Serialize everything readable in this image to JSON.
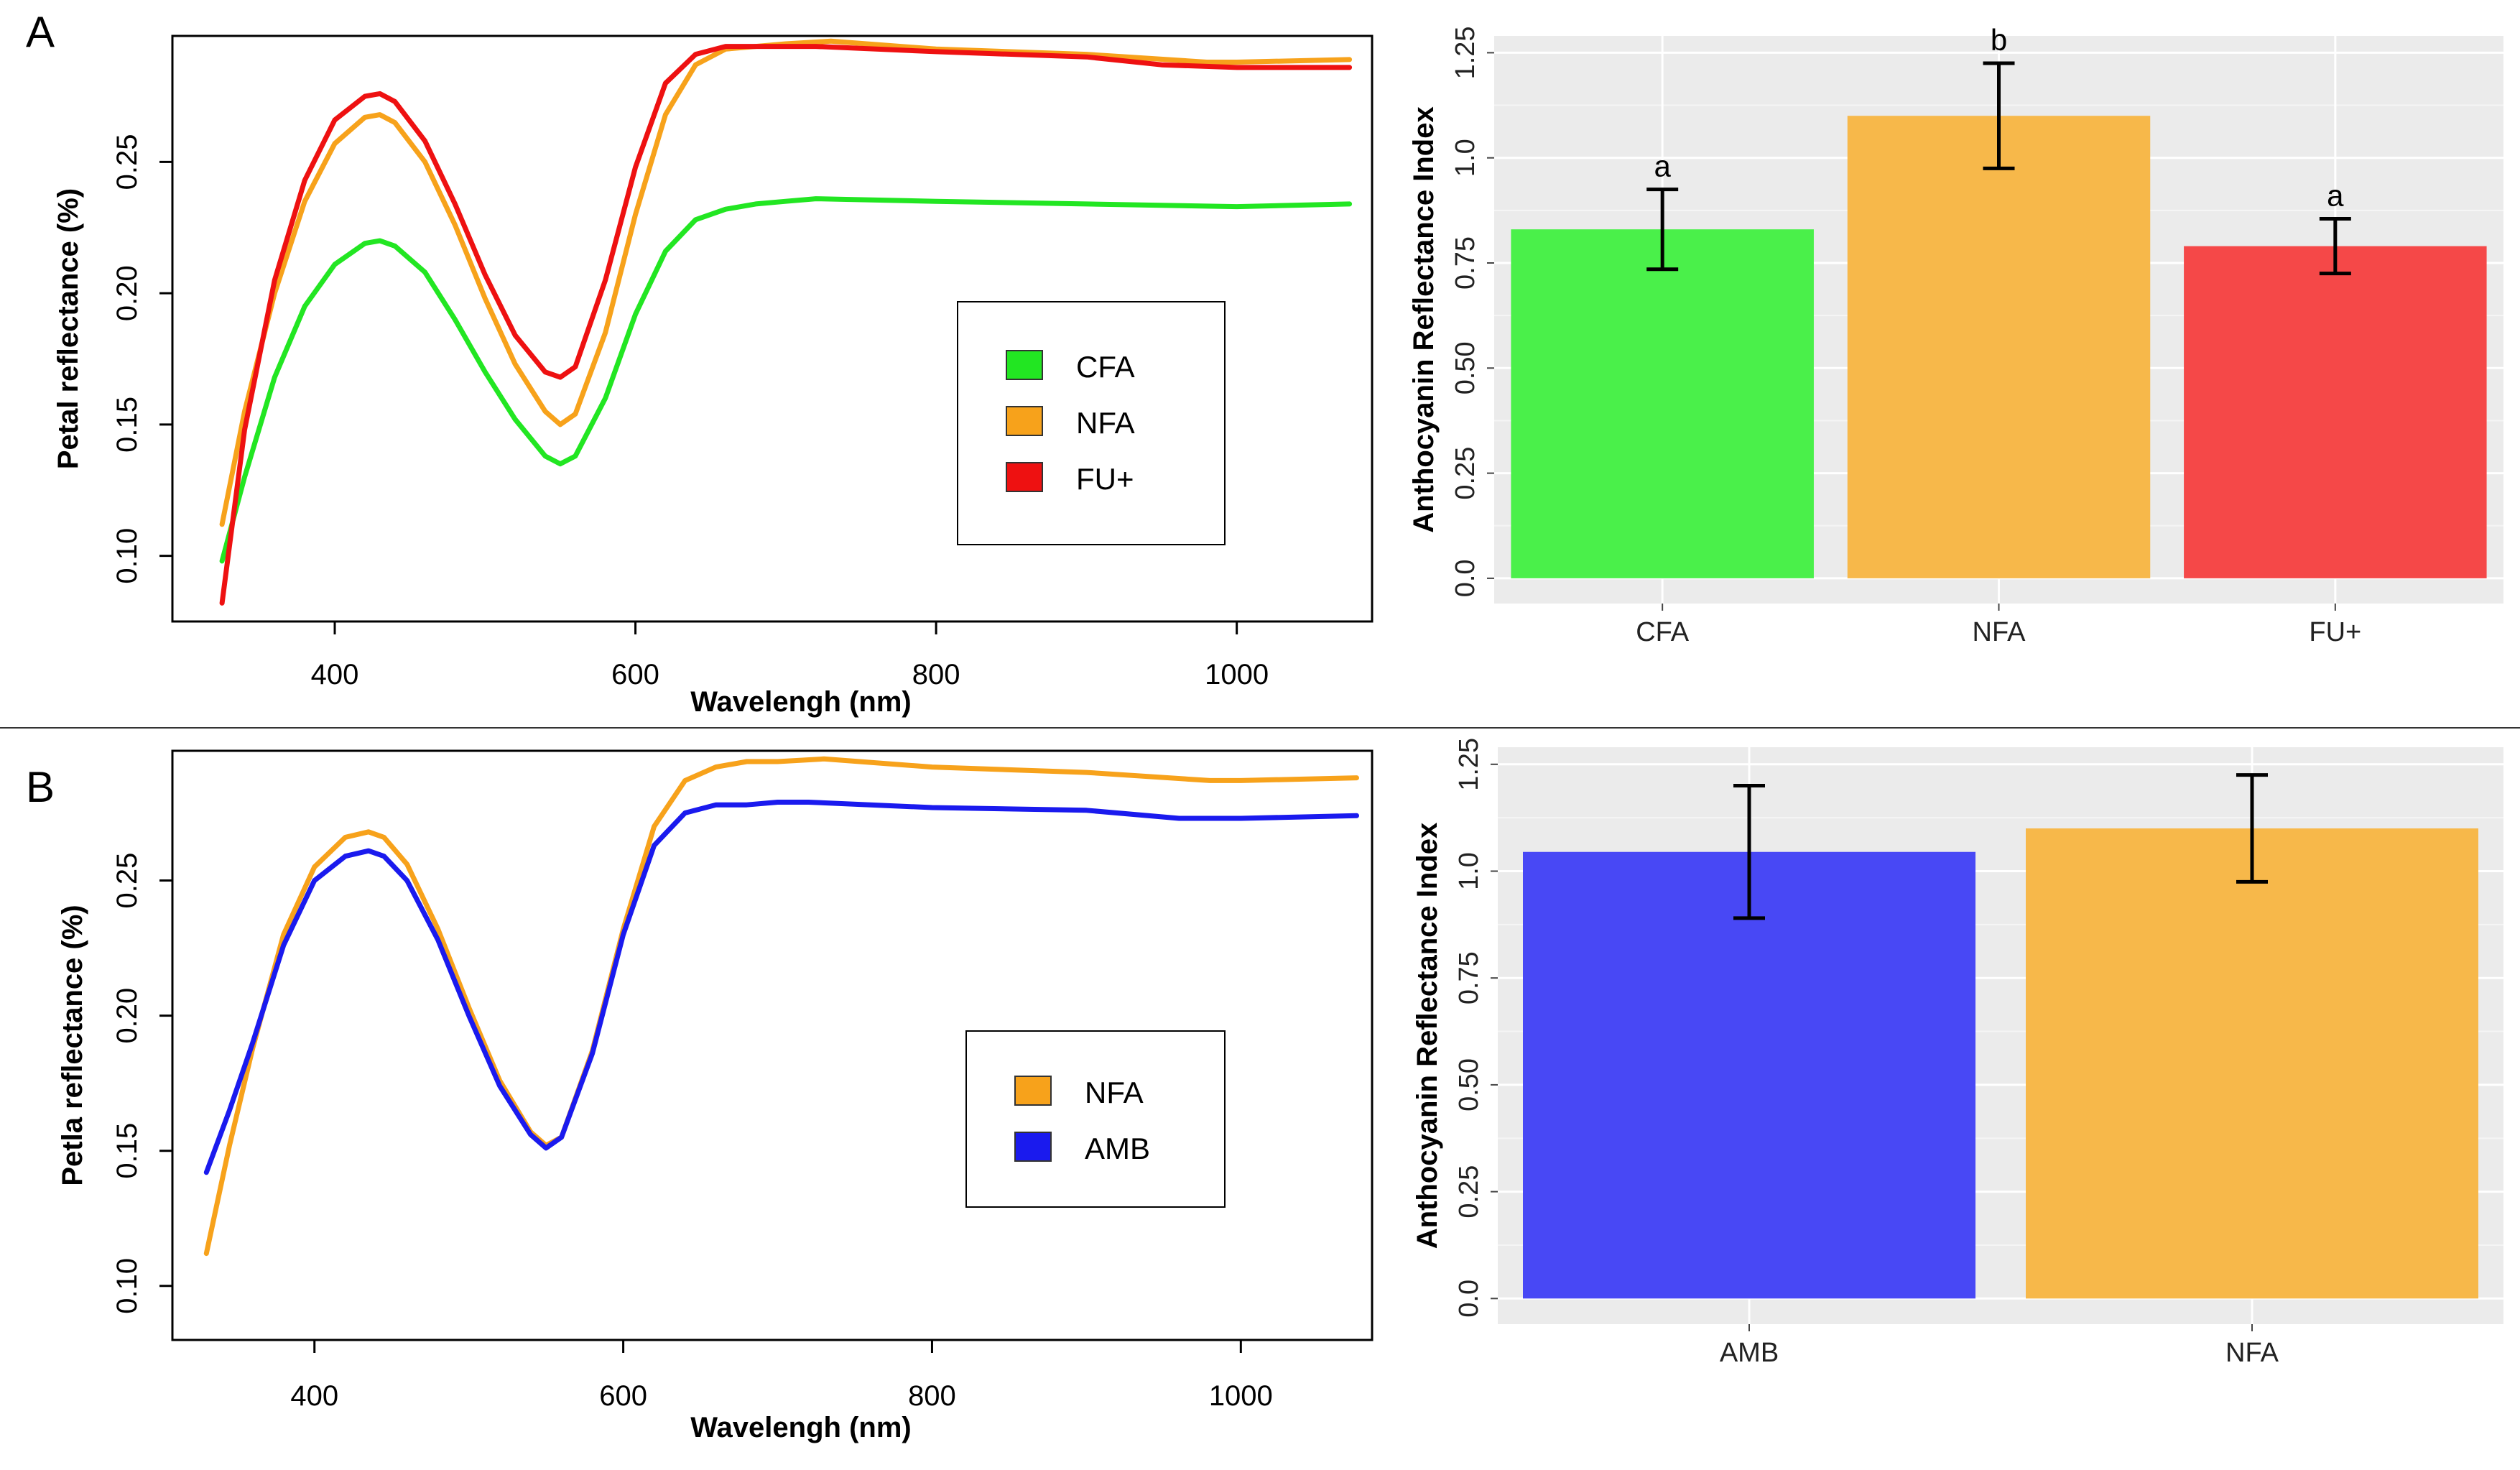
{
  "panels": {
    "A": {
      "letter": "A"
    },
    "B": {
      "letter": "B"
    }
  },
  "colors": {
    "CFA": "#22e622",
    "NFA": "#f7a21b",
    "FU+": "#ee1111",
    "AMB": "#1a1aee",
    "bar_CFA": "#4af04a",
    "bar_NFA": "#f7b84a",
    "bar_FU+": "#f54848",
    "bar_AMB": "#4848f5",
    "gg_panel": "#ebebeb"
  },
  "chart_data": [
    {
      "id": "A-left",
      "type": "line",
      "title": "",
      "xlabel": "Wavelengh (nm)",
      "ylabel": "Petal reflectance (%)",
      "xlim": [
        292,
        1090
      ],
      "ylim": [
        0.075,
        0.298
      ],
      "xticks": [
        400,
        600,
        800,
        1000
      ],
      "yticks": [
        0.1,
        0.15,
        0.2,
        0.25
      ],
      "xtick_labels": [
        "400",
        "600",
        "800",
        "1000"
      ],
      "ytick_labels": [
        "0.10",
        "0.15",
        "0.20",
        "0.25"
      ],
      "legend_position": "center-right",
      "series": [
        {
          "name": "CFA",
          "color_key": "CFA",
          "x": [
            325,
            340,
            360,
            380,
            400,
            420,
            430,
            440,
            460,
            480,
            500,
            520,
            540,
            550,
            560,
            580,
            600,
            620,
            640,
            660,
            680,
            700,
            720,
            800,
            900,
            1000,
            1075
          ],
          "y": [
            0.098,
            0.13,
            0.168,
            0.195,
            0.211,
            0.219,
            0.22,
            0.218,
            0.208,
            0.19,
            0.17,
            0.152,
            0.138,
            0.135,
            0.138,
            0.16,
            0.192,
            0.216,
            0.228,
            0.232,
            0.234,
            0.235,
            0.236,
            0.235,
            0.234,
            0.233,
            0.234
          ]
        },
        {
          "name": "NFA",
          "color_key": "NFA",
          "x": [
            325,
            340,
            360,
            380,
            400,
            420,
            430,
            440,
            460,
            480,
            500,
            520,
            540,
            550,
            560,
            580,
            600,
            620,
            640,
            660,
            680,
            700,
            730,
            800,
            900,
            980,
            1000,
            1075
          ],
          "y": [
            0.112,
            0.155,
            0.2,
            0.235,
            0.257,
            0.267,
            0.268,
            0.265,
            0.25,
            0.226,
            0.198,
            0.173,
            0.155,
            0.15,
            0.154,
            0.185,
            0.23,
            0.268,
            0.287,
            0.293,
            0.294,
            0.295,
            0.296,
            0.293,
            0.291,
            0.288,
            0.288,
            0.289
          ]
        },
        {
          "name": "FU+",
          "color_key": "FU+",
          "x": [
            325,
            340,
            360,
            380,
            400,
            420,
            430,
            440,
            460,
            480,
            500,
            520,
            540,
            550,
            560,
            580,
            600,
            620,
            640,
            660,
            680,
            700,
            720,
            800,
            900,
            950,
            1000,
            1075
          ],
          "y": [
            0.082,
            0.148,
            0.205,
            0.243,
            0.266,
            0.275,
            0.276,
            0.273,
            0.258,
            0.234,
            0.207,
            0.184,
            0.17,
            0.168,
            0.172,
            0.205,
            0.248,
            0.28,
            0.291,
            0.294,
            0.294,
            0.294,
            0.294,
            0.292,
            0.29,
            0.287,
            0.286,
            0.286
          ]
        }
      ],
      "legend": [
        "CFA",
        "NFA",
        "FU+"
      ]
    },
    {
      "id": "A-right",
      "type": "bar",
      "title": "",
      "xlabel": "",
      "ylabel": "Anthocyanin  Reflectance Index",
      "categories": [
        "CFA",
        "NFA",
        "FU+"
      ],
      "values": [
        0.83,
        1.1,
        0.79
      ],
      "errors": [
        0.095,
        0.125,
        0.065
      ],
      "significance_labels": [
        "a",
        "b",
        "a"
      ],
      "bar_color_keys": [
        "bar_CFA",
        "bar_NFA",
        "bar_FU+"
      ],
      "ylim": [
        -0.06,
        1.29
      ],
      "yticks": [
        0.0,
        0.25,
        0.5,
        0.75,
        1.0,
        1.25
      ],
      "ytick_labels": [
        "0.0",
        "0.25",
        "0.50",
        "0.75",
        "1.0",
        "1.25"
      ],
      "grid": true
    },
    {
      "id": "B-left",
      "type": "line",
      "title": "",
      "xlabel": "Wavelengh (nm)",
      "ylabel": "Petla reflectance (%)",
      "xlim": [
        308,
        1085
      ],
      "ylim": [
        0.08,
        0.298
      ],
      "xticks": [
        400,
        600,
        800,
        1000
      ],
      "yticks": [
        0.1,
        0.15,
        0.2,
        0.25
      ],
      "xtick_labels": [
        "400",
        "600",
        "800",
        "1000"
      ],
      "ytick_labels": [
        "0.10",
        "0.15",
        "0.20",
        "0.25"
      ],
      "legend_position": "center-right",
      "series": [
        {
          "name": "NFA",
          "color_key": "NFA",
          "x": [
            330,
            345,
            360,
            380,
            400,
            420,
            435,
            445,
            460,
            480,
            500,
            520,
            540,
            550,
            560,
            580,
            600,
            620,
            640,
            660,
            680,
            700,
            730,
            800,
            900,
            980,
            1000,
            1075
          ],
          "y": [
            0.112,
            0.152,
            0.188,
            0.23,
            0.255,
            0.266,
            0.268,
            0.266,
            0.256,
            0.232,
            0.203,
            0.176,
            0.157,
            0.152,
            0.155,
            0.187,
            0.232,
            0.27,
            0.287,
            0.292,
            0.294,
            0.294,
            0.295,
            0.292,
            0.29,
            0.287,
            0.287,
            0.288
          ]
        },
        {
          "name": "AMB",
          "color_key": "AMB",
          "x": [
            330,
            345,
            360,
            380,
            400,
            420,
            435,
            445,
            460,
            480,
            500,
            520,
            540,
            550,
            560,
            580,
            600,
            620,
            640,
            660,
            680,
            700,
            720,
            800,
            900,
            960,
            1000,
            1075
          ],
          "y": [
            0.142,
            0.165,
            0.19,
            0.226,
            0.25,
            0.259,
            0.261,
            0.259,
            0.25,
            0.228,
            0.2,
            0.174,
            0.156,
            0.151,
            0.155,
            0.186,
            0.23,
            0.263,
            0.275,
            0.278,
            0.278,
            0.279,
            0.279,
            0.277,
            0.276,
            0.273,
            0.273,
            0.274
          ]
        }
      ],
      "legend": [
        "NFA",
        "AMB"
      ]
    },
    {
      "id": "B-right",
      "type": "bar",
      "title": "",
      "xlabel": "",
      "ylabel": "Anthocyanin  Reflectance Index",
      "categories": [
        "AMB",
        "NFA"
      ],
      "values": [
        1.045,
        1.1
      ],
      "errors": [
        0.155,
        0.125
      ],
      "significance_labels": [],
      "bar_color_keys": [
        "bar_AMB",
        "bar_NFA"
      ],
      "ylim": [
        -0.06,
        1.29
      ],
      "yticks": [
        0.0,
        0.25,
        0.5,
        0.75,
        1.0,
        1.25
      ],
      "ytick_labels": [
        "0.0",
        "0.25",
        "0.50",
        "0.75",
        "1.0",
        "1.25"
      ],
      "grid": true
    }
  ]
}
